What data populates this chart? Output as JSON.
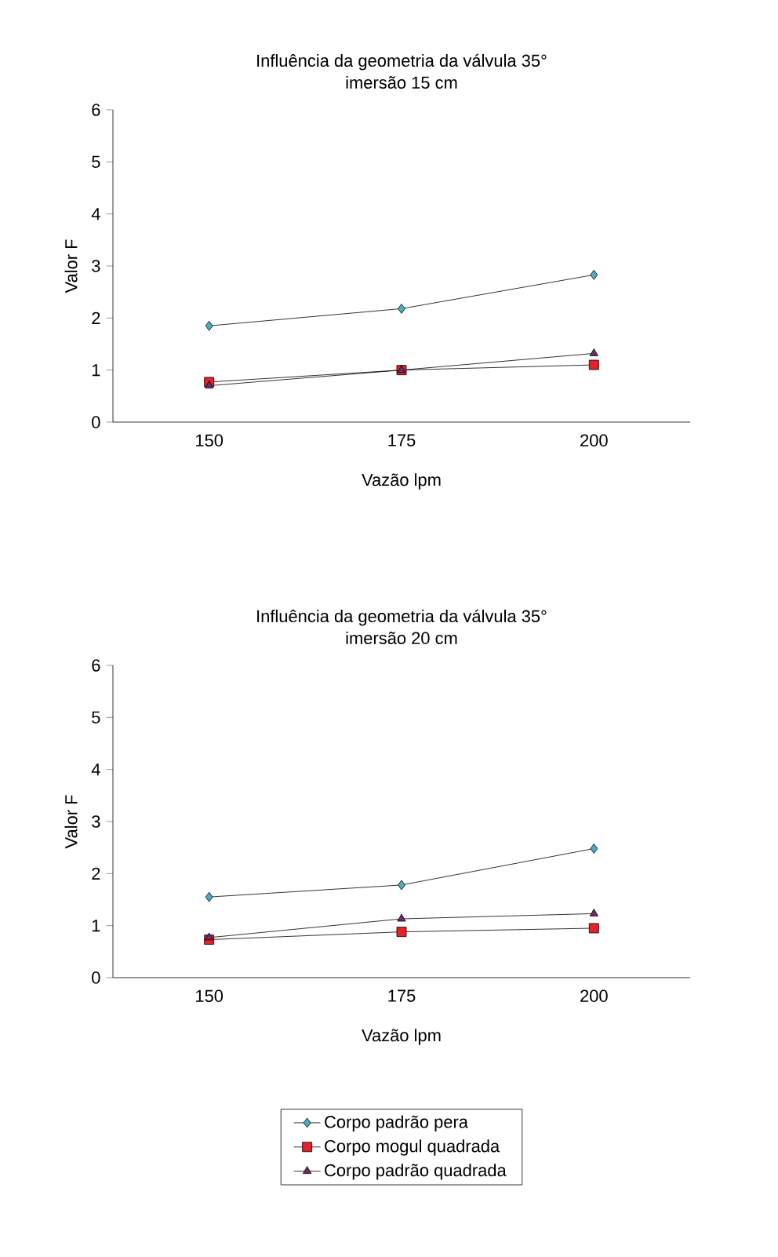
{
  "chart_data": [
    {
      "type": "line",
      "title": "Influência da geometria da válvula 35°",
      "subtitle": "imersão 15 cm",
      "xlabel": "Vazão lpm",
      "ylabel": "Valor F",
      "categories": [
        "150",
        "175",
        "200"
      ],
      "ylim": [
        0,
        6
      ],
      "yticks": [
        0,
        1,
        2,
        3,
        4,
        5,
        6
      ],
      "series": [
        {
          "color": "#4bacc6",
          "marker": "diamond",
          "values": [
            1.85,
            2.18,
            2.83
          ]
        },
        {
          "color": "#e8202a",
          "marker": "square",
          "values": [
            0.77,
            1.0,
            1.1
          ]
        },
        {
          "color": "#6a2c6a",
          "marker": "triangle",
          "values": [
            0.7,
            1.0,
            1.32
          ]
        }
      ]
    },
    {
      "type": "line",
      "title": "Influência da geometria da válvula 35°",
      "subtitle": "imersão 20 cm",
      "xlabel": "Vazão lpm",
      "ylabel": "Valor F",
      "categories": [
        "150",
        "175",
        "200"
      ],
      "ylim": [
        0,
        6
      ],
      "yticks": [
        0,
        1,
        2,
        3,
        4,
        5,
        6
      ],
      "legend": "bottom",
      "series": [
        {
          "name": "Corpo padrão pera",
          "color": "#4bacc6",
          "marker": "diamond",
          "values": [
            1.55,
            1.78,
            2.48
          ]
        },
        {
          "name": "Corpo mogul quadrada",
          "color": "#e8202a",
          "marker": "square",
          "values": [
            0.73,
            0.88,
            0.95
          ]
        },
        {
          "name": "Corpo padrão quadrada",
          "color": "#6a2c6a",
          "marker": "triangle",
          "values": [
            0.77,
            1.13,
            1.23
          ]
        }
      ]
    }
  ]
}
